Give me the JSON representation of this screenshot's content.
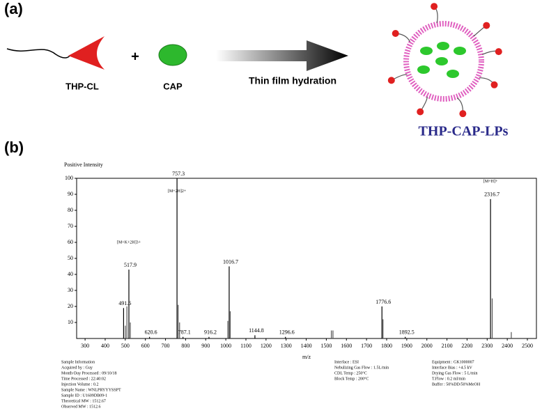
{
  "panel_a": {
    "label": "(a)",
    "lipid": "THP-CL",
    "plus": "+",
    "drug": "CAP",
    "process": "Thin film hydration",
    "product": "THP-CAP-LPs"
  },
  "panel_b_label": "(b)",
  "chart_data": {
    "type": "stick",
    "y_label": "Positive Intensity",
    "x_label": "m/z",
    "xlim": [
      258,
      2545
    ],
    "xticks": [
      300,
      400,
      500,
      600,
      700,
      800,
      900,
      1000,
      1100,
      1200,
      1300,
      1400,
      1500,
      1600,
      1700,
      1800,
      1900,
      2000,
      2100,
      2200,
      2300,
      2400,
      2500
    ],
    "ylim": [
      0,
      100
    ],
    "yticks": [
      10,
      20,
      30,
      40,
      50,
      60,
      70,
      80,
      90,
      100
    ],
    "series": [
      {
        "color": "#000000",
        "x": [
          491.6,
          517.9,
          620.6,
          757.3,
          787.1,
          916.2,
          1016.7,
          1144.8,
          1296.6,
          1776.6,
          1892.5,
          2316.7
        ],
        "values": [
          19,
          43,
          1,
          100,
          1,
          1,
          45,
          2,
          1,
          20,
          1,
          87
        ]
      },
      {
        "color": "#555555",
        "x": [
          500,
          508,
          525,
          763,
          770,
          1010,
          1022,
          1525,
          1533,
          1782,
          2325,
          2420
        ],
        "values": [
          8,
          20,
          10,
          21,
          10,
          11,
          17,
          5,
          5,
          12,
          25,
          4
        ]
      }
    ],
    "annotations": [
      {
        "text": "[M+K+2H]3+",
        "x": 517.9,
        "y": 60
      },
      {
        "text": "[M+2H]2+",
        "x": 757.3,
        "y": 92
      },
      {
        "text": "[M+H]+",
        "x": 2316.7,
        "y": 98
      }
    ]
  },
  "info": {
    "left": [
      "Sample Information",
      "Acquired by : Guy",
      "Month-Day Processed : 09/10/18",
      "Time Processed : 22:40:02",
      "Injection Volume : 0.2",
      "Sample Name : WNLPRYYYSSPT",
      "Sample ID : U1609DB09-1",
      "Theoretical MW : 1512.67",
      "Observed MW : 1512.6"
    ],
    "middle": [
      "Interface : ESI",
      "Nebulizing Gas Flow : 1.5L/min",
      "CDL Temp : 250°C",
      "Block Temp : 200°C"
    ],
    "right": [
      "Equipment : GK1000007",
      "Interface Bias : +4.5 kV",
      "Drying Gas Flow : 5 L/min",
      "T.Flow : 0.2 ml/min",
      "Buffer : 50%DD/50%MeOH"
    ]
  }
}
